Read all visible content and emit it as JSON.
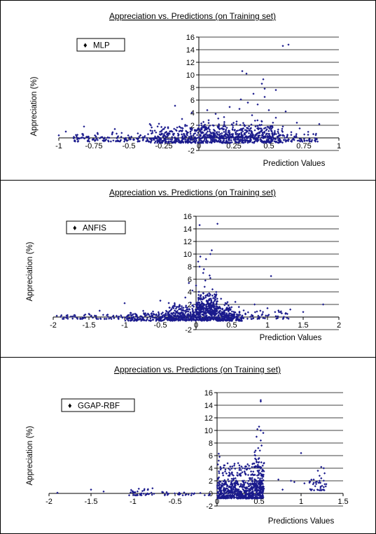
{
  "charts": [
    {
      "type": "scatter",
      "title": "Appreciation vs. Predictions (on Training set)",
      "xlabel": "Prediction Values",
      "ylabel": "Appreciation (%)",
      "legend": "MLP",
      "legend_position": "top-left",
      "xlim": [
        -1,
        1
      ],
      "ylim": [
        -2,
        16
      ],
      "xticks": [
        "-1",
        "-0.75",
        "-0.5",
        "-0.25",
        "0",
        "0.25",
        "0.5",
        "0.75",
        "1"
      ],
      "xtick_values": [
        -1,
        -0.75,
        -0.5,
        -0.25,
        0,
        0.25,
        0.5,
        0.75,
        1
      ],
      "yticks": [
        "-2",
        "0",
        "2",
        "4",
        "6",
        "8",
        "10",
        "12",
        "14",
        "16"
      ],
      "ytick_values": [
        -2,
        0,
        2,
        4,
        6,
        8,
        10,
        12,
        14,
        16
      ],
      "grid": "horizontal",
      "marker_color": "#1a1a8c",
      "points": [
        [
          0.6,
          14.6
        ],
        [
          0.64,
          14.8
        ],
        [
          0.31,
          10.6
        ],
        [
          0.34,
          10.2
        ],
        [
          0.46,
          9.3
        ],
        [
          0.45,
          8.6
        ],
        [
          0.47,
          7.8
        ],
        [
          0.55,
          7.6
        ],
        [
          0.39,
          7.0
        ],
        [
          0.47,
          6.5
        ],
        [
          0.3,
          6.1
        ],
        [
          0.35,
          5.6
        ],
        [
          0.42,
          5.3
        ],
        [
          -0.17,
          5.1
        ],
        [
          0.22,
          4.9
        ],
        [
          0.29,
          4.6
        ],
        [
          0.5,
          4.4
        ],
        [
          0.06,
          4.4
        ],
        [
          0.62,
          4.2
        ],
        [
          -0.05,
          4.0
        ],
        [
          0.12,
          3.8
        ],
        [
          0.38,
          3.6
        ],
        [
          0.18,
          3.3
        ],
        [
          0.55,
          3.2
        ],
        [
          -0.12,
          3.0
        ],
        [
          0.07,
          2.8
        ],
        [
          0.27,
          2.6
        ],
        [
          0.45,
          2.6
        ],
        [
          0.7,
          2.4
        ],
        [
          0.86,
          2.2
        ],
        [
          -0.35,
          2.2
        ],
        [
          0.1,
          2.0
        ],
        [
          0.33,
          1.9
        ],
        [
          -0.82,
          1.8
        ],
        [
          0.6,
          1.8
        ],
        [
          -0.22,
          1.7
        ],
        [
          0.2,
          1.6
        ],
        [
          0.52,
          1.5
        ],
        [
          0.72,
          1.5
        ],
        [
          -0.6,
          1.4
        ],
        [
          0.02,
          1.3
        ],
        [
          0.4,
          1.2
        ],
        [
          -0.95,
          1.0
        ],
        [
          0.66,
          0.9
        ],
        [
          0.78,
          0.5
        ],
        [
          -1.0,
          0.4
        ]
      ],
      "clusters": [
        {
          "x": [
            -0.9,
            0.85
          ],
          "y": [
            -0.6,
            1.1
          ],
          "count": 420
        },
        {
          "x": [
            -0.35,
            0.6
          ],
          "y": [
            -0.8,
            2.4
          ],
          "count": 520
        },
        {
          "x": [
            0.0,
            0.55
          ],
          "y": [
            0.0,
            3.2
          ],
          "count": 180
        }
      ]
    },
    {
      "type": "scatter",
      "title": "Appreciation vs. Predictions (on Training set)",
      "xlabel": "Prediction Values",
      "ylabel": "Appreciation (%)",
      "legend": "ANFIS",
      "legend_position": "top-left",
      "xlim": [
        -2,
        2
      ],
      "ylim": [
        -2,
        16
      ],
      "xticks": [
        "-2",
        "-1.5",
        "-1",
        "-0.5",
        "0",
        "0.5",
        "1",
        "1.5",
        "2"
      ],
      "xtick_values": [
        -2,
        -1.5,
        -1,
        -0.5,
        0,
        0.5,
        1,
        1.5,
        2
      ],
      "yticks": [
        "-2",
        "0",
        "2",
        "4",
        "6",
        "8",
        "10",
        "12",
        "14",
        "16"
      ],
      "ytick_values": [
        -2,
        0,
        2,
        4,
        6,
        8,
        10,
        12,
        14,
        16
      ],
      "grid": "horizontal",
      "marker_color": "#1a1a8c",
      "points": [
        [
          0.05,
          14.6
        ],
        [
          0.3,
          14.8
        ],
        [
          0.22,
          10.6
        ],
        [
          0.2,
          10.0
        ],
        [
          0.06,
          9.6
        ],
        [
          0.14,
          9.2
        ],
        [
          0.03,
          8.8
        ],
        [
          0.05,
          8.0
        ],
        [
          0.11,
          7.6
        ],
        [
          0.1,
          7.0
        ],
        [
          0.19,
          6.6
        ],
        [
          1.05,
          6.5
        ],
        [
          0.2,
          6.2
        ],
        [
          0.13,
          5.8
        ],
        [
          -0.1,
          5.4
        ],
        [
          0.0,
          5.0
        ],
        [
          0.12,
          4.8
        ],
        [
          0.23,
          4.4
        ],
        [
          -0.05,
          4.2
        ],
        [
          0.04,
          4.0
        ],
        [
          0.1,
          3.8
        ],
        [
          0.16,
          3.6
        ],
        [
          0.28,
          3.4
        ],
        [
          -0.15,
          3.1
        ],
        [
          0.07,
          3.0
        ],
        [
          0.35,
          2.9
        ],
        [
          -0.5,
          2.6
        ],
        [
          0.15,
          2.6
        ],
        [
          0.3,
          2.5
        ],
        [
          0.55,
          2.4
        ],
        [
          -1.0,
          2.2
        ],
        [
          -0.3,
          2.2
        ],
        [
          0.2,
          2.2
        ],
        [
          0.82,
          2.0
        ],
        [
          1.78,
          2.0
        ],
        [
          0.4,
          1.9
        ],
        [
          0.6,
          1.6
        ],
        [
          1.0,
          1.4
        ],
        [
          1.32,
          1.2
        ],
        [
          -1.35,
          1.0
        ],
        [
          0.9,
          1.0
        ],
        [
          1.5,
          0.8
        ],
        [
          1.2,
          0.6
        ],
        [
          -1.5,
          0.5
        ],
        [
          -1.8,
          0.3
        ],
        [
          -1.95,
          0.2
        ]
      ],
      "clusters": [
        {
          "x": [
            -1.0,
            0.65
          ],
          "y": [
            -0.6,
            1.0
          ],
          "count": 420
        },
        {
          "x": [
            -0.4,
            0.5
          ],
          "y": [
            -0.5,
            2.5
          ],
          "count": 420
        },
        {
          "x": [
            0.0,
            0.3
          ],
          "y": [
            0.5,
            4.2
          ],
          "count": 200
        },
        {
          "x": [
            -1.9,
            -1.0
          ],
          "y": [
            -0.3,
            0.6
          ],
          "count": 60
        },
        {
          "x": [
            0.5,
            1.3
          ],
          "y": [
            -0.3,
            1.2
          ],
          "count": 60
        }
      ]
    },
    {
      "type": "scatter",
      "title": "Appreciation vs. Predictions (on Training set)",
      "xlabel": "Predictions Values",
      "ylabel": "Appreciation (%)",
      "legend": "GGAP-RBF",
      "legend_position": "top-left",
      "xlim": [
        -2,
        1.5
      ],
      "ylim": [
        -2,
        16
      ],
      "xticks": [
        "-2",
        "-1.5",
        "-1",
        "-0.5",
        "0",
        "0.5",
        "1",
        "1.5"
      ],
      "xtick_values": [
        -2,
        -1.5,
        -1,
        -0.5,
        0,
        0.5,
        1,
        1.5
      ],
      "yticks": [
        "-2",
        "0",
        "2",
        "4",
        "6",
        "8",
        "10",
        "12",
        "14",
        "16"
      ],
      "ytick_values": [
        -2,
        0,
        2,
        4,
        6,
        8,
        10,
        12,
        14,
        16
      ],
      "grid": "horizontal",
      "marker_color": "#1a1a8c",
      "points": [
        [
          0.52,
          14.8
        ],
        [
          0.52,
          14.6
        ],
        [
          0.5,
          10.6
        ],
        [
          0.48,
          10.2
        ],
        [
          0.52,
          10.0
        ],
        [
          0.55,
          9.6
        ],
        [
          0.47,
          9.0
        ],
        [
          0.52,
          8.4
        ],
        [
          0.53,
          7.6
        ],
        [
          0.49,
          7.2
        ],
        [
          0.51,
          6.8
        ],
        [
          0.02,
          6.3
        ],
        [
          1.0,
          6.4
        ],
        [
          0.03,
          5.8
        ],
        [
          0.5,
          5.6
        ],
        [
          0.02,
          5.2
        ],
        [
          0.01,
          4.6
        ],
        [
          0.04,
          4.2
        ],
        [
          1.24,
          4.2
        ],
        [
          1.27,
          4.0
        ],
        [
          1.2,
          3.6
        ],
        [
          1.28,
          3.2
        ],
        [
          1.22,
          2.8
        ],
        [
          1.24,
          2.4
        ],
        [
          1.15,
          2.2
        ],
        [
          1.22,
          2.0
        ],
        [
          0.92,
          1.8
        ],
        [
          1.1,
          1.7
        ],
        [
          0.88,
          2.0
        ],
        [
          1.18,
          1.5
        ],
        [
          1.04,
          1.6
        ],
        [
          0.73,
          2.2
        ],
        [
          0.78,
          0.6
        ],
        [
          -1.5,
          0.6
        ],
        [
          -1.35,
          0.3
        ],
        [
          -0.9,
          0.0
        ],
        [
          -0.6,
          0.2
        ],
        [
          -0.45,
          0.1
        ],
        [
          -0.3,
          0.0
        ],
        [
          -1.9,
          0.1
        ],
        [
          1.27,
          1.0
        ],
        [
          1.25,
          1.2
        ]
      ],
      "clusters": [
        {
          "x": [
            0.0,
            0.55
          ],
          "y": [
            -0.8,
            2.8
          ],
          "count": 620
        },
        {
          "x": [
            0.02,
            0.55
          ],
          "y": [
            2.8,
            5.2
          ],
          "count": 90
        },
        {
          "x": [
            0.44,
            0.56
          ],
          "y": [
            0.5,
            7.0
          ],
          "count": 80
        },
        {
          "x": [
            -1.05,
            -0.75
          ],
          "y": [
            -0.3,
            0.9
          ],
          "count": 40
        },
        {
          "x": [
            -0.7,
            -0.05
          ],
          "y": [
            -0.3,
            0.4
          ],
          "count": 25
        },
        {
          "x": [
            1.1,
            1.3
          ],
          "y": [
            0.5,
            2.6
          ],
          "count": 30
        }
      ]
    }
  ]
}
